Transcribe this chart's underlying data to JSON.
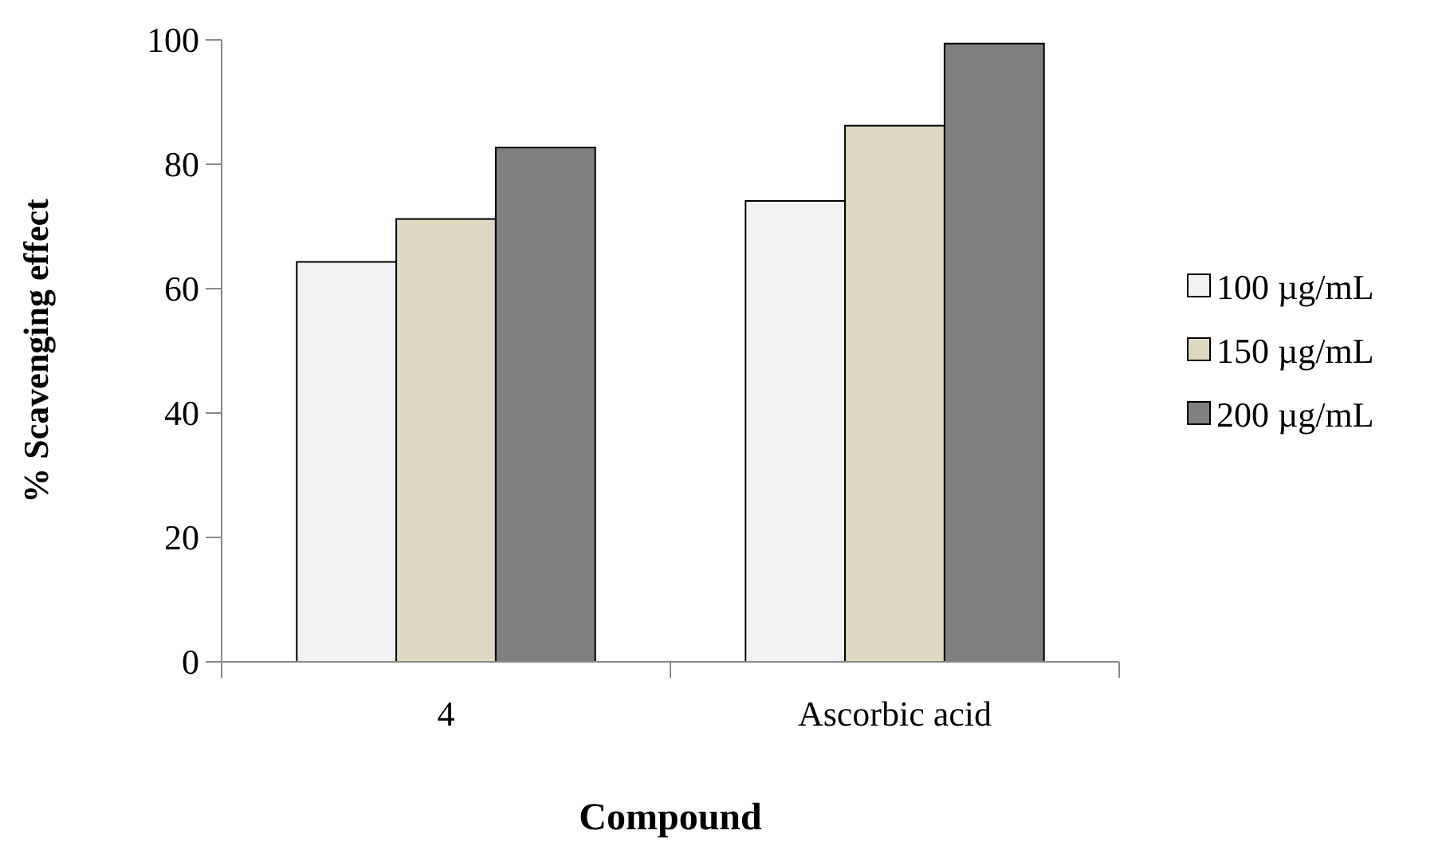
{
  "chart_data": {
    "type": "bar",
    "xlabel": "Compound",
    "ylabel": "% Scavenging effect",
    "categories": [
      "4",
      "Ascorbic acid"
    ],
    "series": [
      {
        "name": "100 µg/mL",
        "color": "#f2f2f2",
        "values": [
          64.3,
          74.1
        ]
      },
      {
        "name": "150 µg/mL",
        "color": "#ddd9c3",
        "values": [
          71.2,
          86.2
        ]
      },
      {
        "name": "200 µg/mL",
        "color": "#7f7f7f",
        "values": [
          82.7,
          99.4
        ]
      }
    ],
    "ylim": [
      0,
      100
    ],
    "yticks": [
      0,
      20,
      40,
      60,
      80,
      100
    ],
    "grid": false,
    "legend": "right"
  }
}
